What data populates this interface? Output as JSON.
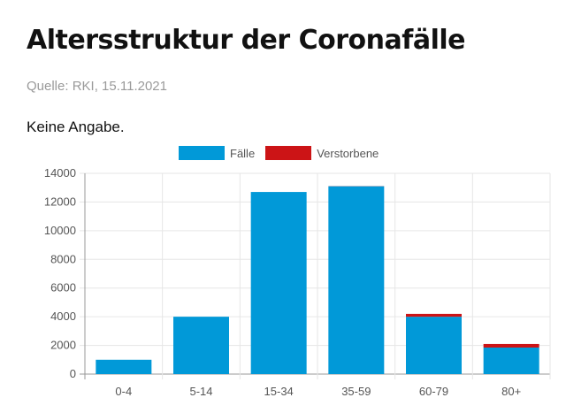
{
  "header": {
    "title": "Altersstruktur der Coronafälle",
    "source": "Quelle: RKI, 15.11.2021",
    "subtitle": "Keine Angabe."
  },
  "colors": {
    "faelle": "#0199d8",
    "verstorbene": "#cc1416",
    "grid": "#e6e6e6",
    "axis": "#999999"
  },
  "chart_data": {
    "type": "bar",
    "stacked": true,
    "categories": [
      "0-4",
      "5-14",
      "15-34",
      "35-59",
      "60-79",
      "80+"
    ],
    "series": [
      {
        "name": "Fälle",
        "values": [
          1000,
          4000,
          12700,
          13100,
          4000,
          1850
        ]
      },
      {
        "name": "Verstorbene",
        "values": [
          0,
          0,
          0,
          10,
          200,
          250
        ]
      }
    ],
    "ylim": [
      0,
      14000
    ],
    "yticks": [
      0,
      2000,
      4000,
      6000,
      8000,
      10000,
      12000,
      14000
    ],
    "legend": "top",
    "grid": true
  }
}
